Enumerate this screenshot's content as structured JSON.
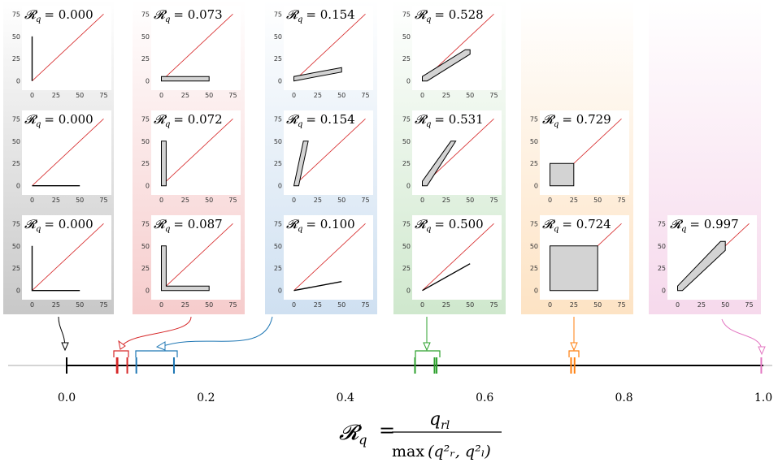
{
  "panel_label_prefix": "𝓡",
  "panel_label_sub": "q",
  "columns": [
    {
      "color": "#888888",
      "panels": [
        {
          "row": 0,
          "value": "0.000"
        },
        {
          "row": 1,
          "value": "0.000"
        },
        {
          "row": 2,
          "value": "0.000"
        }
      ]
    },
    {
      "color": "#e8a3a3",
      "panels": [
        {
          "row": 0,
          "value": "0.073"
        },
        {
          "row": 1,
          "value": "0.072"
        },
        {
          "row": 2,
          "value": "0.087"
        }
      ]
    },
    {
      "color": "#a9c6e3",
      "panels": [
        {
          "row": 0,
          "value": "0.154"
        },
        {
          "row": 1,
          "value": "0.154"
        },
        {
          "row": 2,
          "value": "0.100"
        }
      ]
    },
    {
      "color": "#a8d4a4",
      "panels": [
        {
          "row": 0,
          "value": "0.528"
        },
        {
          "row": 1,
          "value": "0.531"
        },
        {
          "row": 2,
          "value": "0.500"
        }
      ]
    },
    {
      "color": "#f7cf9d",
      "panels": [
        {
          "row": 1,
          "value": "0.729"
        },
        {
          "row": 2,
          "value": "0.724"
        }
      ]
    },
    {
      "color": "#ebb8dc",
      "panels": [
        {
          "row": 2,
          "value": "0.997"
        }
      ]
    }
  ],
  "panel_ticks": {
    "x": [
      "0",
      "25",
      "50",
      "75"
    ],
    "y": [
      "0",
      "25",
      "50",
      "75"
    ]
  },
  "number_line": {
    "tick_labels": [
      "0.0",
      "0.2",
      "0.4",
      "0.6",
      "0.8",
      "1.0"
    ],
    "markers": [
      {
        "color": "#000000",
        "values": [
          0.0
        ]
      },
      {
        "color": "#d62728",
        "values": [
          0.072,
          0.073,
          0.087
        ]
      },
      {
        "color": "#1f77b4",
        "values": [
          0.1,
          0.154,
          0.154
        ]
      },
      {
        "color": "#2ca02c",
        "values": [
          0.5,
          0.528,
          0.531
        ]
      },
      {
        "color": "#ff7f0e",
        "values": [
          0.724,
          0.729
        ]
      },
      {
        "color": "#e377c2",
        "values": [
          0.997
        ]
      }
    ]
  },
  "formula": {
    "lhs_symbol": "𝓡",
    "lhs_sub": "q",
    "equals": "=",
    "numerator": "q",
    "numerator_sub": "rl",
    "denominator_func": "max",
    "denominator_args": "(q²ᵣ, q²ₗ)"
  }
}
